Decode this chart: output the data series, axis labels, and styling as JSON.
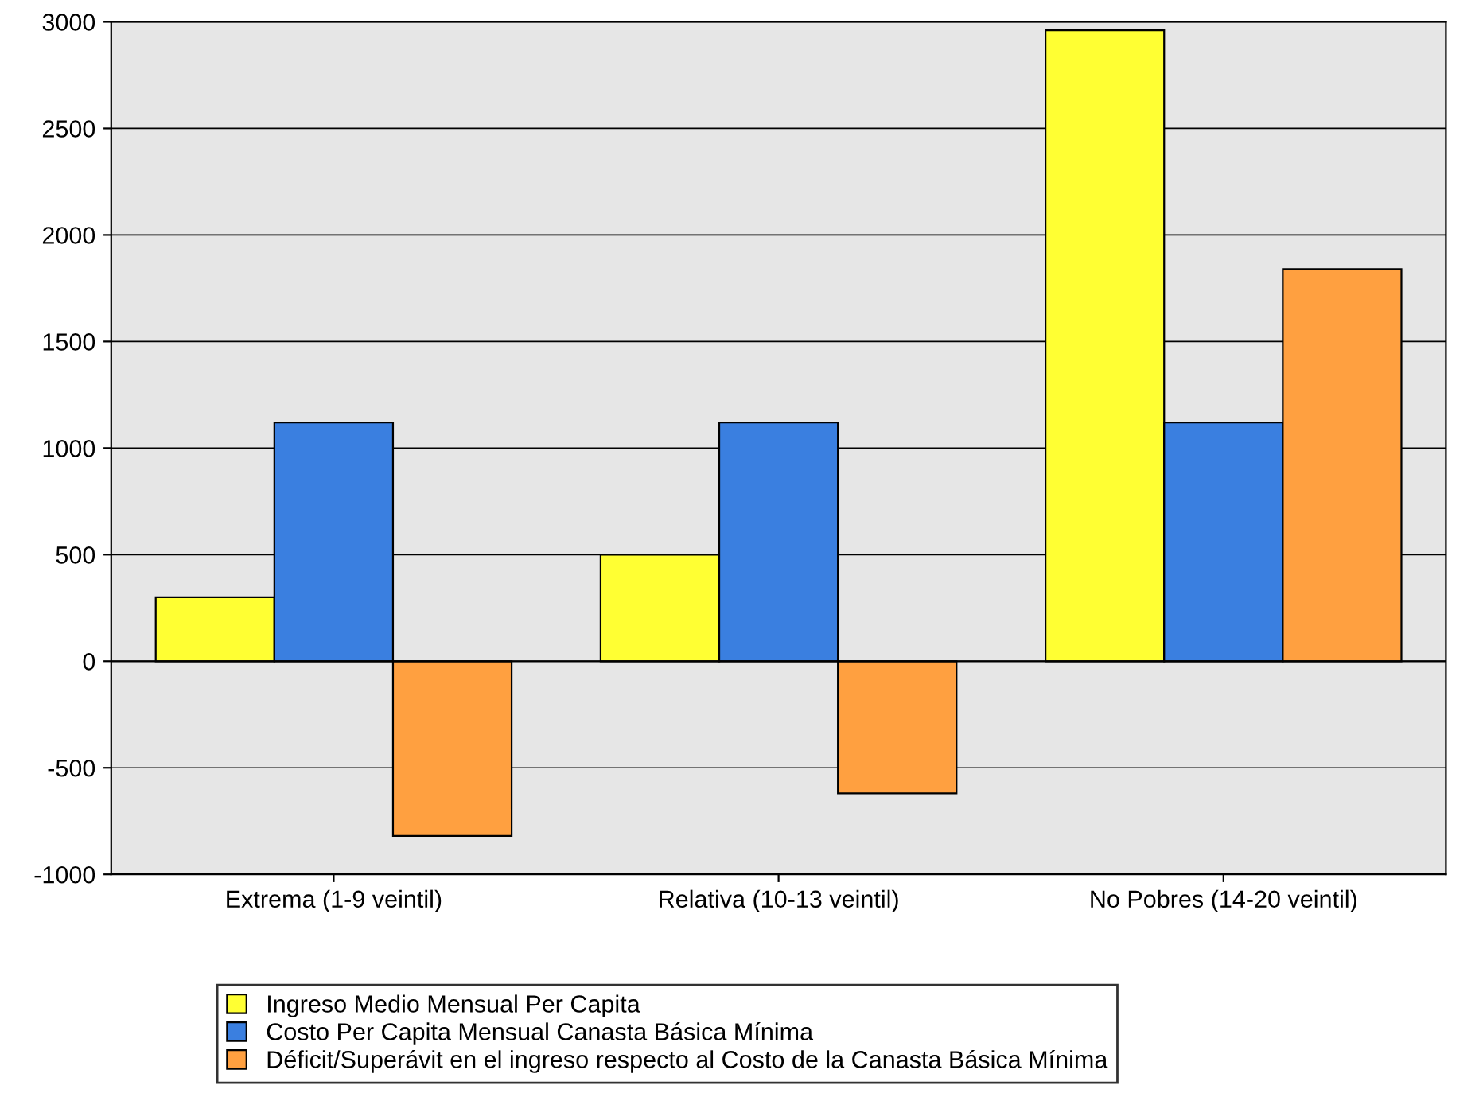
{
  "chart_data": {
    "type": "bar",
    "categories": [
      "Extrema (1-9 veintil)",
      "Relativa (10-13 veintil)",
      "No Pobres (14-20 veintil)"
    ],
    "series": [
      {
        "name": "Ingreso Medio Mensual Per Capita",
        "color": "#ffff33",
        "values": [
          300,
          500,
          2960
        ]
      },
      {
        "name": "Costo Per Capita Mensual Canasta Básica Mínima",
        "color": "#3a7fe0",
        "values": [
          1120,
          1120,
          1120
        ]
      },
      {
        "name": "Déficit/Superávit en el ingreso respecto al Costo de la Canasta Básica Mínima",
        "color": "#ffa040",
        "values": [
          -820,
          -620,
          1840
        ]
      }
    ],
    "ylim": [
      -1000,
      3000
    ],
    "yticks": [
      -1000,
      -500,
      0,
      500,
      1000,
      1500,
      2000,
      2500,
      3000
    ],
    "grid": "y",
    "legend": "bottom"
  }
}
